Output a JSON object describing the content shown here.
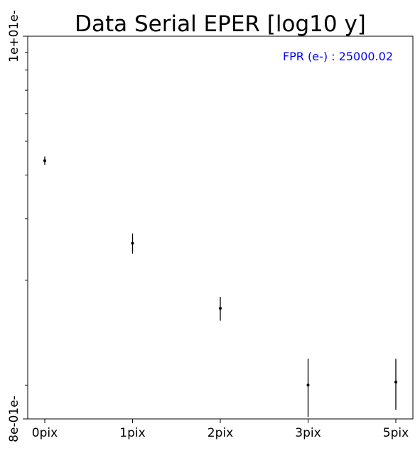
{
  "chart_data": {
    "type": "scatter",
    "title": "Data Serial EPER [log10 y]",
    "xlabel": "",
    "ylabel": "",
    "yscale": "log",
    "ylim": [
      0.8,
      10
    ],
    "categories": [
      "0pix",
      "1pix",
      "2pix",
      "3pix",
      "5pix"
    ],
    "ytick_labels": {
      "top": "1e+01e-",
      "bottom": "8e-01e-"
    },
    "series": [
      {
        "points": [
          {
            "x": "0pix",
            "y": 4.4,
            "err": 0.12
          },
          {
            "x": "1pix",
            "y": 2.55,
            "err": 0.17
          },
          {
            "x": "2pix",
            "y": 1.66,
            "err": 0.13
          },
          {
            "x": "3pix",
            "y": 1.0,
            "err": 0.19
          },
          {
            "x": "5pix",
            "y": 1.02,
            "err": 0.17
          }
        ]
      }
    ],
    "annotation": {
      "text": "FPR (e-) : 25000.02",
      "color": "#0000ff"
    },
    "marker_color": "#000000",
    "grid": false
  }
}
